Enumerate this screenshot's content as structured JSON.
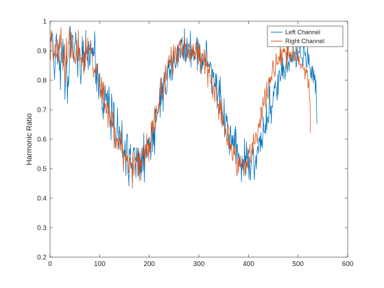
{
  "chart_data": {
    "type": "line",
    "title": "",
    "xlabel": "",
    "ylabel": "Harmonic Ratio",
    "xlim": [
      0,
      600
    ],
    "ylim": [
      0.2,
      1
    ],
    "xticks": [
      "0",
      "100",
      "200",
      "300",
      "400",
      "500",
      "600"
    ],
    "yticks": [
      "0.2",
      "0.3",
      "0.4",
      "0.5",
      "0.6",
      "0.7",
      "0.8",
      "0.9",
      "1"
    ],
    "grid": false,
    "legend_position": "top-right",
    "colors": {
      "left": "#0072BD",
      "right": "#D95319"
    },
    "series": [
      {
        "name": "Left Channel",
        "color": "#0072BD",
        "x_start": 1,
        "x_step": 1,
        "values": [
          0.945,
          0.928,
          0.952,
          0.952,
          0.959,
          0.913,
          0.873,
          0.845,
          0.803,
          0.845,
          0.907,
          0.941,
          0.959,
          0.901,
          0.853,
          0.9,
          0.901,
          0.924,
          0.833,
          0.864,
          0.767,
          0.875,
          0.927,
          0.859,
          0.889,
          0.941,
          0.848,
          0.917,
          0.892,
          0.734,
          0.794,
          0.84,
          0.885,
          0.825,
          0.721,
          0.813,
          0.777,
          0.803,
          0.851,
          0.915,
          0.984,
          0.875,
          0.903,
          0.943,
          0.954,
          0.949,
          0.889,
          0.86,
          0.913,
          0.928,
          0.928,
          0.964,
          0.909,
          0.875,
          0.855,
          0.81,
          0.926,
          0.915,
          0.893,
          0.889,
          0.813,
          0.786,
          0.837,
          0.886,
          0.949,
          0.859,
          0.933,
          0.829,
          0.842,
          0.895,
          0.846,
          0.97,
          0.898,
          0.889,
          0.913,
          0.868,
          0.835,
          0.932,
          0.89,
          0.847,
          0.863,
          0.936,
          0.891,
          0.894,
          0.911,
          0.881,
          0.911,
          0.882,
          0.889,
          0.966,
          0.911,
          0.788,
          0.844,
          0.761,
          0.848,
          0.856,
          0.787,
          0.735,
          0.82,
          0.824,
          0.748,
          0.741,
          0.763,
          0.768,
          0.699,
          0.706,
          0.667,
          0.739,
          0.688,
          0.745,
          0.784,
          0.73,
          0.752,
          0.755,
          0.711,
          0.767,
          0.707,
          0.726,
          0.779,
          0.681,
          0.647,
          0.665,
          0.596,
          0.755,
          0.724,
          0.66,
          0.638,
          0.726,
          0.722,
          0.604,
          0.596,
          0.57,
          0.588,
          0.607,
          0.625,
          0.706,
          0.624,
          0.625,
          0.566,
          0.644,
          0.625,
          0.575,
          0.6,
          0.581,
          0.664,
          0.544,
          0.535,
          0.552,
          0.562,
          0.542,
          0.596,
          0.541,
          0.475,
          0.589,
          0.617,
          0.617,
          0.484,
          0.479,
          0.44,
          0.567,
          0.549,
          0.584,
          0.499,
          0.506,
          0.519,
          0.447,
          0.537,
          0.571,
          0.563,
          0.573,
          0.523,
          0.515,
          0.469,
          0.572,
          0.523,
          0.531,
          0.571,
          0.473,
          0.559,
          0.533,
          0.483,
          0.531,
          0.461,
          0.569,
          0.486,
          0.53,
          0.569,
          0.492,
          0.622,
          0.454,
          0.527,
          0.55,
          0.568,
          0.534,
          0.583,
          0.598,
          0.58,
          0.604,
          0.572,
          0.608,
          0.564,
          0.589,
          0.53,
          0.568,
          0.623,
          0.66,
          0.557,
          0.646,
          0.579,
          0.642,
          0.548,
          0.699,
          0.701,
          0.658,
          0.676,
          0.684,
          0.69,
          0.69,
          0.695,
          0.714,
          0.774,
          0.674,
          0.776,
          0.715,
          0.808,
          0.752,
          0.791,
          0.694,
          0.808,
          0.795,
          0.829,
          0.78,
          0.774,
          0.75,
          0.758,
          0.766,
          0.811,
          0.867,
          0.84,
          0.869,
          0.804,
          0.836,
          0.836,
          0.798,
          0.884,
          0.853,
          0.8,
          0.9,
          0.857,
          0.881,
          0.871,
          0.851,
          0.84,
          0.852,
          0.868,
          0.912,
          0.844,
          0.922,
          0.883,
          0.909,
          0.908,
          0.88,
          0.874,
          0.939,
          0.928,
          0.947,
          0.876,
          0.899,
          0.923,
          0.866,
          0.976,
          0.891,
          0.859,
          0.923,
          0.865,
          0.944,
          0.898,
          0.875,
          0.926,
          0.918,
          0.914,
          0.902,
          0.967,
          0.843,
          0.904,
          0.873,
          0.904,
          0.891,
          0.917,
          0.865,
          0.882,
          0.871,
          0.889,
          0.909,
          0.924,
          0.947,
          0.832,
          0.94,
          0.905,
          0.912,
          0.864,
          0.923,
          0.886,
          0.849,
          0.822,
          0.89,
          0.838,
          0.87,
          0.849,
          0.876,
          0.889,
          0.862,
          0.873,
          0.85,
          0.936,
          0.92,
          0.843,
          0.865,
          0.846,
          0.853,
          0.853,
          0.84,
          0.862,
          0.855,
          0.853,
          0.754,
          0.837,
          0.836,
          0.809,
          0.828,
          0.778,
          0.79,
          0.767,
          0.823,
          0.782,
          0.822,
          0.703,
          0.748,
          0.751,
          0.763,
          0.8,
          0.685,
          0.813,
          0.749,
          0.737,
          0.728,
          0.695,
          0.686,
          0.646,
          0.669,
          0.738,
          0.607,
          0.638,
          0.671,
          0.689,
          0.658,
          0.679,
          0.623,
          0.619,
          0.569,
          0.617,
          0.547,
          0.635,
          0.647,
          0.605,
          0.568,
          0.614,
          0.578,
          0.613,
          0.563,
          0.575,
          0.634,
          0.541,
          0.644,
          0.618,
          0.517,
          0.584,
          0.578,
          0.533,
          0.553,
          0.545,
          0.524,
          0.542,
          0.505,
          0.515,
          0.455,
          0.543,
          0.498,
          0.53,
          0.531,
          0.475,
          0.602,
          0.52,
          0.545,
          0.482,
          0.592,
          0.534,
          0.533,
          0.569,
          0.541,
          0.463,
          0.54,
          0.498,
          0.459,
          0.501,
          0.524,
          0.566,
          0.552,
          0.556,
          0.57,
          0.495,
          0.461,
          0.504,
          0.519,
          0.546,
          0.498,
          0.542,
          0.571,
          0.576,
          0.551,
          0.604,
          0.592,
          0.612,
          0.557,
          0.624,
          0.575,
          0.6,
          0.569,
          0.618,
          0.677,
          0.627,
          0.625,
          0.62,
          0.651,
          0.618,
          0.721,
          0.631,
          0.669,
          0.677,
          0.656,
          0.659,
          0.771,
          0.785,
          0.686,
          0.713,
          0.652,
          0.712,
          0.709,
          0.717,
          0.762,
          0.745,
          0.782,
          0.772,
          0.798,
          0.776,
          0.776,
          0.749,
          0.732,
          0.82,
          0.749,
          0.82,
          0.835,
          0.826,
          0.796,
          0.806,
          0.815,
          0.86,
          0.814,
          0.877,
          0.804,
          0.851,
          0.835,
          0.824,
          0.801,
          0.847,
          0.86,
          0.896,
          0.826,
          0.839,
          0.863,
          0.86,
          0.831,
          0.889,
          0.887,
          0.862,
          0.876,
          0.862,
          0.885,
          0.859,
          0.923,
          0.879,
          0.864,
          0.898,
          0.889,
          0.886,
          0.845,
          0.848,
          0.916,
          0.875,
          0.875,
          0.899,
          0.893,
          0.899,
          0.928,
          0.889,
          0.877,
          0.874,
          0.875,
          0.874,
          0.845,
          0.921,
          0.914,
          0.904,
          0.883,
          0.895,
          0.86,
          0.846,
          0.842,
          0.912,
          0.885,
          0.852,
          0.888,
          0.844,
          0.842,
          0.828,
          0.807,
          0.846,
          0.8,
          0.849,
          0.839,
          0.79,
          0.834,
          0.8,
          0.819,
          0.755,
          0.803,
          0.73,
          0.653
        ]
      },
      {
        "name": "Right Channel",
        "color": "#D95319",
        "x_start": 1,
        "x_step": 1,
        "values": [
          0.869,
          0.961,
          0.969,
          0.935,
          0.929,
          0.878,
          0.862,
          0.893,
          0.882,
          0.922,
          0.914,
          0.876,
          0.885,
          0.89,
          0.939,
          0.908,
          0.86,
          0.871,
          0.954,
          0.908,
          0.931,
          0.979,
          0.885,
          0.878,
          0.888,
          0.834,
          0.876,
          0.871,
          0.925,
          0.8,
          0.788,
          0.873,
          0.944,
          0.849,
          0.866,
          0.874,
          0.929,
          0.926,
          0.982,
          0.937,
          0.88,
          0.877,
          0.962,
          0.941,
          0.895,
          0.873,
          0.895,
          0.88,
          0.879,
          0.867,
          0.854,
          0.885,
          0.911,
          0.936,
          0.86,
          0.876,
          0.97,
          0.866,
          0.909,
          0.907,
          0.875,
          0.874,
          0.865,
          0.847,
          0.878,
          0.869,
          0.888,
          0.821,
          0.899,
          0.832,
          0.899,
          0.952,
          0.884,
          0.873,
          0.866,
          0.944,
          0.888,
          0.894,
          0.908,
          0.902,
          0.924,
          0.914,
          0.903,
          0.908,
          0.879,
          0.835,
          0.84,
          0.809,
          0.836,
          0.826,
          0.838,
          0.846,
          0.828,
          0.857,
          0.85,
          0.828,
          0.812,
          0.797,
          0.787,
          0.784,
          0.771,
          0.741,
          0.811,
          0.782,
          0.719,
          0.793,
          0.736,
          0.796,
          0.759,
          0.701,
          0.718,
          0.721,
          0.687,
          0.689,
          0.726,
          0.712,
          0.639,
          0.724,
          0.691,
          0.665,
          0.64,
          0.645,
          0.694,
          0.66,
          0.644,
          0.654,
          0.693,
          0.686,
          0.568,
          0.641,
          0.639,
          0.61,
          0.569,
          0.601,
          0.595,
          0.605,
          0.564,
          0.597,
          0.589,
          0.604,
          0.594,
          0.56,
          0.615,
          0.629,
          0.553,
          0.582,
          0.557,
          0.488,
          0.545,
          0.546,
          0.548,
          0.526,
          0.564,
          0.543,
          0.525,
          0.544,
          0.534,
          0.485,
          0.492,
          0.533,
          0.537,
          0.51,
          0.509,
          0.521,
          0.505,
          0.433,
          0.557,
          0.535,
          0.476,
          0.512,
          0.513,
          0.538,
          0.53,
          0.545,
          0.548,
          0.55,
          0.475,
          0.571,
          0.528,
          0.457,
          0.553,
          0.509,
          0.53,
          0.489,
          0.523,
          0.55,
          0.577,
          0.544,
          0.546,
          0.569,
          0.509,
          0.58,
          0.582,
          0.553,
          0.619,
          0.539,
          0.544,
          0.584,
          0.524,
          0.607,
          0.555,
          0.584,
          0.567,
          0.66,
          0.62,
          0.652,
          0.664,
          0.617,
          0.663,
          0.675,
          0.709,
          0.629,
          0.659,
          0.715,
          0.694,
          0.682,
          0.698,
          0.703,
          0.722,
          0.705,
          0.764,
          0.783,
          0.81,
          0.751,
          0.774,
          0.733,
          0.75,
          0.769,
          0.794,
          0.825,
          0.79,
          0.754,
          0.853,
          0.817,
          0.799,
          0.843,
          0.845,
          0.865,
          0.862,
          0.885,
          0.86,
          0.868,
          0.848,
          0.914,
          0.856,
          0.866,
          0.817,
          0.823,
          0.922,
          0.874,
          0.868,
          0.915,
          0.901,
          0.871,
          0.855,
          0.893,
          0.92,
          0.882,
          0.859,
          0.917,
          0.932,
          0.918,
          0.938,
          0.908,
          0.904,
          0.884,
          0.916,
          0.903,
          0.871,
          0.934,
          0.952,
          0.906,
          0.924,
          0.92,
          0.88,
          0.878,
          0.895,
          0.897,
          0.897,
          0.904,
          0.862,
          0.924,
          0.87,
          0.885,
          0.877,
          0.919,
          0.898,
          0.882,
          0.924,
          0.886,
          0.899,
          0.883,
          0.87,
          0.928,
          0.923,
          0.886,
          0.876,
          0.922,
          0.854,
          0.928,
          0.868,
          0.908,
          0.822,
          0.875,
          0.86,
          0.861,
          0.891,
          0.889,
          0.858,
          0.878,
          0.905,
          0.821,
          0.845,
          0.898,
          0.849,
          0.847,
          0.864,
          0.776,
          0.837,
          0.824,
          0.857,
          0.816,
          0.816,
          0.796,
          0.786,
          0.812,
          0.771,
          0.74,
          0.782,
          0.77,
          0.763,
          0.725,
          0.774,
          0.783,
          0.778,
          0.727,
          0.733,
          0.712,
          0.721,
          0.666,
          0.718,
          0.705,
          0.699,
          0.733,
          0.653,
          0.731,
          0.641,
          0.671,
          0.68,
          0.669,
          0.645,
          0.643,
          0.615,
          0.637,
          0.623,
          0.599,
          0.579,
          0.626,
          0.654,
          0.568,
          0.602,
          0.575,
          0.586,
          0.561,
          0.585,
          0.573,
          0.542,
          0.526,
          0.536,
          0.579,
          0.548,
          0.553,
          0.578,
          0.524,
          0.509,
          0.498,
          0.474,
          0.509,
          0.537,
          0.485,
          0.539,
          0.507,
          0.546,
          0.524,
          0.51,
          0.51,
          0.524,
          0.532,
          0.519,
          0.49,
          0.51,
          0.523,
          0.508,
          0.475,
          0.52,
          0.521,
          0.504,
          0.534,
          0.498,
          0.562,
          0.553,
          0.561,
          0.584,
          0.523,
          0.52,
          0.533,
          0.586,
          0.589,
          0.545,
          0.618,
          0.599,
          0.585,
          0.583,
          0.6,
          0.623,
          0.614,
          0.6,
          0.586,
          0.626,
          0.654,
          0.648,
          0.638,
          0.669,
          0.638,
          0.709,
          0.707,
          0.662,
          0.687,
          0.742,
          0.721,
          0.713,
          0.724,
          0.772,
          0.755,
          0.706,
          0.736,
          0.795,
          0.755,
          0.737,
          0.759,
          0.812,
          0.786,
          0.81,
          0.79,
          0.806,
          0.812,
          0.798,
          0.833,
          0.868,
          0.857,
          0.825,
          0.829,
          0.811,
          0.823,
          0.873,
          0.891,
          0.859,
          0.851,
          0.86,
          0.855,
          0.88,
          0.878,
          0.861,
          0.918,
          0.849,
          0.907,
          0.855,
          0.883,
          0.902,
          0.895,
          0.91,
          0.893,
          0.906,
          0.902,
          0.895,
          0.876,
          0.84,
          0.929,
          0.867,
          0.945,
          0.887,
          0.875,
          0.896,
          0.889,
          0.879,
          0.897,
          0.864,
          0.868,
          0.899,
          0.9,
          0.889,
          0.876,
          0.867,
          0.869,
          0.896,
          0.913,
          0.888,
          0.869,
          0.867,
          0.883,
          0.855,
          0.883,
          0.851,
          0.852,
          0.855,
          0.84,
          0.844,
          0.858,
          0.851,
          0.84,
          0.839,
          0.834,
          0.845,
          0.803,
          0.829,
          0.839,
          0.823,
          0.837,
          0.82,
          0.773,
          0.782,
          0.805,
          0.734,
          0.735,
          0.622
        ]
      }
    ]
  }
}
